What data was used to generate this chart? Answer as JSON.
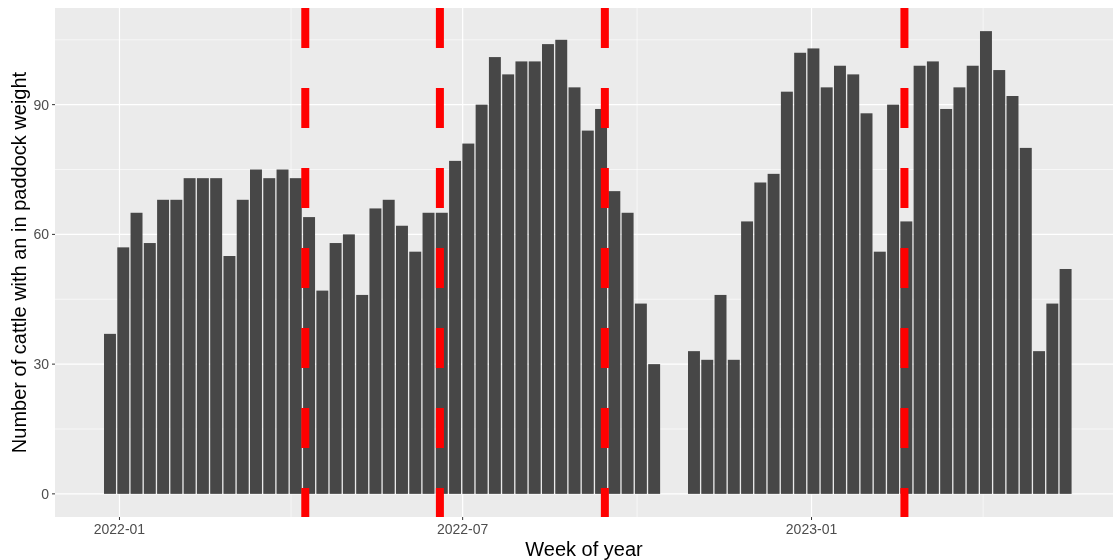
{
  "chart_data": {
    "type": "bar",
    "xlabel": "Week of year",
    "ylabel": "Number of cattle with an in paddock weight",
    "x": [
      "2021-12-27",
      "2022-01-03",
      "2022-01-10",
      "2022-01-17",
      "2022-01-24",
      "2022-01-31",
      "2022-02-07",
      "2022-02-14",
      "2022-02-21",
      "2022-02-28",
      "2022-03-07",
      "2022-03-14",
      "2022-03-21",
      "2022-03-28",
      "2022-04-04",
      "2022-04-11",
      "2022-04-18",
      "2022-04-25",
      "2022-05-02",
      "2022-05-09",
      "2022-05-16",
      "2022-05-23",
      "2022-05-30",
      "2022-06-06",
      "2022-06-13",
      "2022-06-20",
      "2022-06-27",
      "2022-07-04",
      "2022-07-11",
      "2022-07-18",
      "2022-07-25",
      "2022-08-01",
      "2022-08-08",
      "2022-08-15",
      "2022-08-22",
      "2022-08-29",
      "2022-09-05",
      "2022-09-12",
      "2022-09-19",
      "2022-09-26",
      "2022-10-03",
      "2022-10-10",
      "2022-10-17",
      "2022-10-24",
      "2022-10-31",
      "2022-11-07",
      "2022-11-14",
      "2022-11-21",
      "2022-11-28",
      "2022-12-05",
      "2022-12-12",
      "2022-12-19",
      "2022-12-26",
      "2023-01-02",
      "2023-01-09",
      "2023-01-16",
      "2023-01-23",
      "2023-01-30",
      "2023-02-06",
      "2023-02-13",
      "2023-02-20",
      "2023-02-27",
      "2023-03-06",
      "2023-03-13",
      "2023-03-20",
      "2023-03-27",
      "2023-04-03",
      "2023-04-10",
      "2023-04-17",
      "2023-04-24",
      "2023-05-01",
      "2023-05-08",
      "2023-05-15"
    ],
    "values": [
      37,
      57,
      65,
      58,
      68,
      68,
      73,
      73,
      73,
      55,
      68,
      75,
      73,
      75,
      73,
      64,
      47,
      58,
      60,
      46,
      66,
      68,
      62,
      56,
      65,
      65,
      77,
      81,
      90,
      101,
      97,
      100,
      100,
      104,
      105,
      94,
      84,
      89,
      70,
      65,
      44,
      30,
      null,
      null,
      33,
      31,
      46,
      31,
      63,
      72,
      74,
      93,
      102,
      103,
      94,
      99,
      97,
      88,
      56,
      90,
      63,
      99,
      100,
      89,
      94,
      99,
      107,
      98,
      92,
      80,
      33,
      44,
      52
    ],
    "color": "#474747",
    "xlim": [
      "2021-11-28",
      "2023-06-09"
    ],
    "xticks": [
      {
        "value": "2022-01-01",
        "label": "2022-01"
      },
      {
        "value": "2022-07-01",
        "label": "2022-07"
      },
      {
        "value": "2023-01-01",
        "label": "2023-01"
      }
    ],
    "ylim": [
      -5.35,
      112.35
    ],
    "yticks": [
      0,
      30,
      60,
      90
    ],
    "grid": true,
    "ref_lines": [
      {
        "axis": "x",
        "value": "2022-04-09",
        "color": "#ff0000",
        "line_style": "dashed"
      },
      {
        "axis": "x",
        "value": "2022-06-19",
        "color": "#ff0000",
        "line_style": "dashed"
      },
      {
        "axis": "x",
        "value": "2022-09-14",
        "color": "#ff0000",
        "line_style": "dashed"
      },
      {
        "axis": "x",
        "value": "2023-02-19",
        "color": "#ff0000",
        "line_style": "dashed"
      }
    ]
  }
}
